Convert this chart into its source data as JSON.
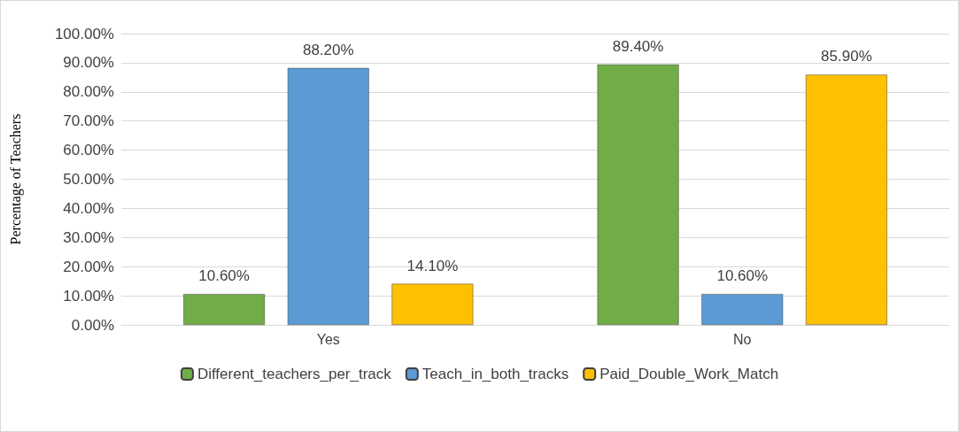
{
  "chart_data": {
    "type": "bar",
    "ylabel": "Percentage of Teachers",
    "categories": [
      "Yes",
      "No"
    ],
    "series": [
      {
        "name": "Different_teachers_per_track",
        "color": "#70ad47",
        "values": [
          10.6,
          89.4
        ],
        "value_labels": [
          "10.60%",
          "89.40%"
        ]
      },
      {
        "name": "Teach_in_both_tracks",
        "color": "#5b9bd5",
        "values": [
          88.2,
          10.6
        ],
        "value_labels": [
          "88.20%",
          "10.60%"
        ]
      },
      {
        "name": "Paid_Double_Work_Match",
        "color": "#ffc000",
        "values": [
          14.1,
          85.9
        ],
        "value_labels": [
          "14.10%",
          "85.90%"
        ]
      }
    ],
    "ylim": [
      0,
      100
    ],
    "yticks": [
      {
        "value": 0,
        "label": "0.00%"
      },
      {
        "value": 10,
        "label": "10.00%"
      },
      {
        "value": 20,
        "label": "20.00%"
      },
      {
        "value": 30,
        "label": "30.00%"
      },
      {
        "value": 40,
        "label": "40.00%"
      },
      {
        "value": 50,
        "label": "50.00%"
      },
      {
        "value": 60,
        "label": "60.00%"
      },
      {
        "value": 70,
        "label": "70.00%"
      },
      {
        "value": 80,
        "label": "80.00%"
      },
      {
        "value": 90,
        "label": "90.00%"
      },
      {
        "value": 100,
        "label": "100.00%"
      }
    ],
    "grid": true,
    "legend": "bottom"
  }
}
